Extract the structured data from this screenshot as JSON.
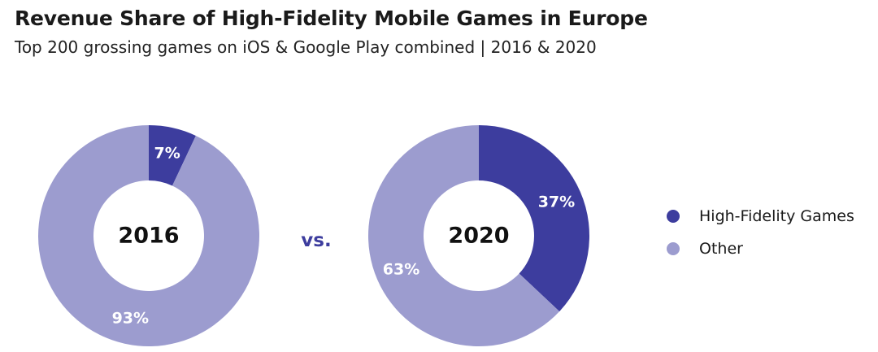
{
  "title": "Revenue Share of High-Fidelity Mobile Games in Europe",
  "subtitle": "Top 200 grossing games on iOS & Google Play combined | 2016 & 2020",
  "separator": "vs.",
  "colors": {
    "high_fidelity": "#3d3d9e",
    "other": "#9c9ccf",
    "separator": "#3d3d9e"
  },
  "legend": [
    {
      "label": "High-Fidelity Games",
      "color_key": "high_fidelity"
    },
    {
      "label": "Other",
      "color_key": "other"
    }
  ],
  "chart_data": [
    {
      "type": "pie",
      "center_label": "2016",
      "slices": [
        {
          "category": "High-Fidelity Games",
          "value": 7,
          "label": "7%"
        },
        {
          "category": "Other",
          "value": 93,
          "label": "93%"
        }
      ]
    },
    {
      "type": "pie",
      "center_label": "2020",
      "slices": [
        {
          "category": "High-Fidelity Games",
          "value": 37,
          "label": "37%"
        },
        {
          "category": "Other",
          "value": 63,
          "label": "63%"
        }
      ]
    }
  ]
}
